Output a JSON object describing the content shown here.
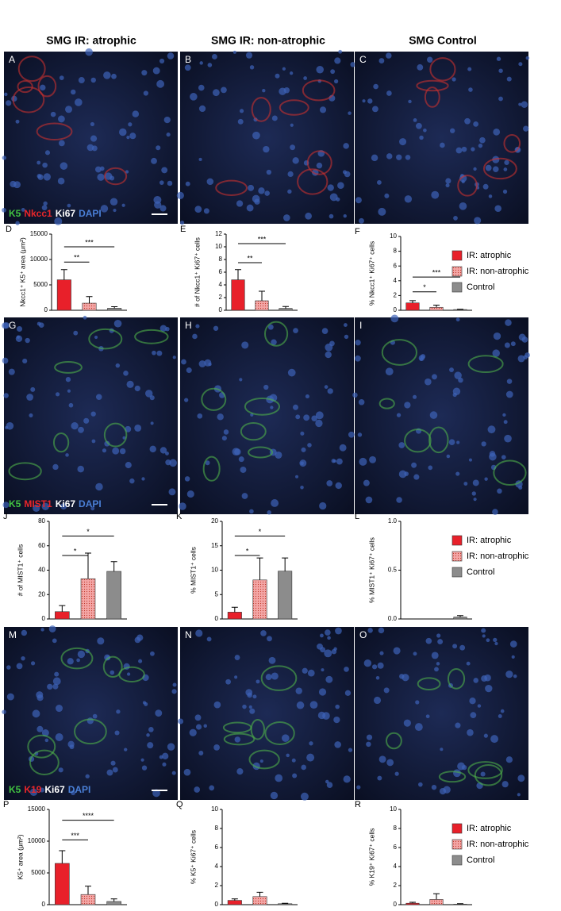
{
  "column_headers": [
    "SMG IR: atrophic",
    "SMG IR: non-atrophic",
    "SMG Control"
  ],
  "image_rows": [
    {
      "panels": [
        "A",
        "B",
        "C"
      ],
      "stain": [
        {
          "text": "K5",
          "color": "#41c141"
        },
        {
          "text": "Nkcc1",
          "color": "#e8262a"
        },
        {
          "text": "Ki67",
          "color": "#ffffff"
        },
        {
          "text": "DAPI",
          "color": "#4a7fd6"
        }
      ]
    },
    {
      "panels": [
        "G",
        "H",
        "I"
      ],
      "stain": [
        {
          "text": "K5",
          "color": "#41c141"
        },
        {
          "text": "MIST1",
          "color": "#e8262a"
        },
        {
          "text": "Ki67",
          "color": "#ffffff"
        },
        {
          "text": "DAPI",
          "color": "#4a7fd6"
        }
      ]
    },
    {
      "panels": [
        "M",
        "N",
        "O"
      ],
      "stain": [
        {
          "text": "K5",
          "color": "#41c141"
        },
        {
          "text": "K19",
          "color": "#e8262a"
        },
        {
          "text": "Ki67",
          "color": "#ffffff"
        },
        {
          "text": "DAPI",
          "color": "#4a7fd6"
        }
      ]
    }
  ],
  "chart_data": [
    {
      "type": "bar",
      "label": "D",
      "ylabel": "Nkcc1⁺ K5⁺ area (μm²)",
      "values": [
        6000,
        1400,
        400
      ],
      "errors": [
        2000,
        1300,
        300
      ],
      "colors": [
        "#e8202a",
        "#f4a6a6",
        "#8c8c8c"
      ],
      "fills": [
        "solid",
        "dotted",
        "solid"
      ],
      "ylim": [
        0,
        15000
      ],
      "yticks": [
        0,
        5000,
        10000,
        15000
      ],
      "significance": [
        {
          "from": 0,
          "to": 2,
          "y": 12500,
          "label": "***"
        },
        {
          "from": 0,
          "to": 1,
          "y": 9500,
          "label": "**"
        }
      ]
    },
    {
      "type": "bar",
      "label": "E",
      "ylabel": "# of Nkcc1⁺ Ki67⁺ cells",
      "values": [
        4.8,
        1.5,
        0.3
      ],
      "errors": [
        1.6,
        1.5,
        0.3
      ],
      "colors": [
        "#e8202a",
        "#f4a6a6",
        "#8c8c8c"
      ],
      "fills": [
        "solid",
        "dotted",
        "solid"
      ],
      "ylim": [
        0,
        12
      ],
      "yticks": [
        0,
        2,
        4,
        6,
        8,
        10,
        12
      ],
      "significance": [
        {
          "from": 0,
          "to": 2,
          "y": 10.5,
          "label": "***"
        },
        {
          "from": 0,
          "to": 1,
          "y": 7.5,
          "label": "**"
        }
      ]
    },
    {
      "type": "bar",
      "label": "F",
      "ylabel": "% Nkcc1⁺ Ki67⁺ cells",
      "values": [
        1.0,
        0.4,
        0.1
      ],
      "errors": [
        0.3,
        0.3,
        0.05
      ],
      "colors": [
        "#e8202a",
        "#f4a6a6",
        "#8c8c8c"
      ],
      "fills": [
        "solid",
        "dotted",
        "solid"
      ],
      "ylim": [
        0,
        10
      ],
      "yticks": [
        0,
        2,
        4,
        6,
        8,
        10
      ],
      "significance": [
        {
          "from": 0,
          "to": 2,
          "y": 4.5,
          "label": "***"
        },
        {
          "from": 0,
          "to": 1,
          "y": 2.5,
          "label": "*"
        }
      ],
      "legend": [
        "IR: atrophic",
        "IR: non-atrophic",
        "Control"
      ]
    },
    {
      "type": "bar",
      "label": "J",
      "ylabel": "# of MIST1⁺ cells",
      "values": [
        6,
        33,
        39
      ],
      "errors": [
        5,
        21,
        8
      ],
      "colors": [
        "#e8202a",
        "#f4a6a6",
        "#8c8c8c"
      ],
      "fills": [
        "solid",
        "dotted",
        "solid"
      ],
      "ylim": [
        0,
        80
      ],
      "yticks": [
        0,
        20,
        40,
        60,
        80
      ],
      "significance": [
        {
          "from": 0,
          "to": 2,
          "y": 68,
          "label": "*"
        },
        {
          "from": 0,
          "to": 1,
          "y": 52,
          "label": "*"
        }
      ]
    },
    {
      "type": "bar",
      "label": "K",
      "ylabel": "% MIST1⁺ cells",
      "values": [
        1.4,
        8,
        9.8
      ],
      "errors": [
        1,
        4.5,
        2.7
      ],
      "colors": [
        "#e8202a",
        "#f4a6a6",
        "#8c8c8c"
      ],
      "fills": [
        "solid",
        "dotted",
        "solid"
      ],
      "ylim": [
        0,
        20
      ],
      "yticks": [
        0,
        5,
        10,
        15,
        20
      ],
      "significance": [
        {
          "from": 0,
          "to": 2,
          "y": 17,
          "label": "*"
        },
        {
          "from": 0,
          "to": 1,
          "y": 13,
          "label": "*"
        }
      ]
    },
    {
      "type": "bar",
      "label": "L",
      "ylabel": "% MIST1⁺ Ki67⁺ cells",
      "values": [
        0,
        0,
        0.02
      ],
      "errors": [
        0,
        0,
        0.015
      ],
      "colors": [
        "#e8202a",
        "#f4a6a6",
        "#8c8c8c"
      ],
      "fills": [
        "solid",
        "dotted",
        "solid"
      ],
      "ylim": [
        0,
        1
      ],
      "yticks": [
        {
          "value": 0,
          "label": "0.0"
        },
        0.5,
        {
          "value": 1,
          "label": "1.0"
        }
      ],
      "significance": [],
      "legend": [
        "IR: atrophic",
        "IR: non-atrophic",
        "Control"
      ]
    },
    {
      "type": "bar",
      "label": "P",
      "ylabel": "K5⁺ area (μm²)",
      "values": [
        6500,
        1600,
        500
      ],
      "errors": [
        2000,
        1300,
        400
      ],
      "colors": [
        "#e8202a",
        "#f4a6a6",
        "#8c8c8c"
      ],
      "fills": [
        "solid",
        "dotted",
        "solid"
      ],
      "ylim": [
        0,
        15000
      ],
      "yticks": [
        0,
        5000,
        10000,
        15000
      ],
      "significance": [
        {
          "from": 0,
          "to": 2,
          "y": 13300,
          "label": "****"
        },
        {
          "from": 0,
          "to": 1,
          "y": 10200,
          "label": "***"
        }
      ]
    },
    {
      "type": "bar",
      "label": "Q",
      "ylabel": "% K5⁺ Ki67⁺ cells",
      "values": [
        0.45,
        0.85,
        0.1
      ],
      "errors": [
        0.15,
        0.45,
        0.05
      ],
      "colors": [
        "#e8202a",
        "#f4a6a6",
        "#8c8c8c"
      ],
      "fills": [
        "solid",
        "dotted",
        "solid"
      ],
      "ylim": [
        0,
        10
      ],
      "yticks": [
        0,
        2,
        4,
        6,
        8,
        10
      ],
      "significance": []
    },
    {
      "type": "bar",
      "label": "R",
      "ylabel": "% K19⁺ Ki67⁺ cells",
      "values": [
        0.15,
        0.55,
        0.05
      ],
      "errors": [
        0.1,
        0.6,
        0.05
      ],
      "colors": [
        "#e8202a",
        "#f4a6a6",
        "#8c8c8c"
      ],
      "fills": [
        "solid",
        "dotted",
        "solid"
      ],
      "ylim": [
        0,
        10
      ],
      "yticks": [
        0,
        2,
        4,
        6,
        8,
        10
      ],
      "significance": [],
      "legend": [
        "IR: atrophic",
        "IR: non-atrophic",
        "Control"
      ]
    }
  ]
}
